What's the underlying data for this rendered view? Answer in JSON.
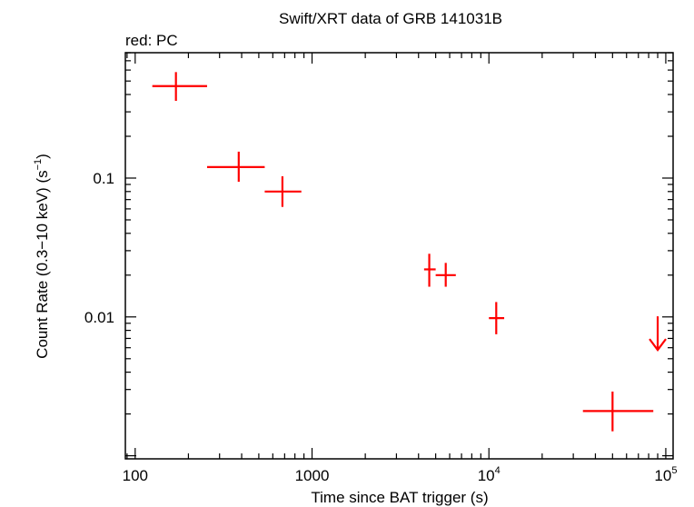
{
  "chart_data": {
    "type": "scatter",
    "title": "Swift/XRT data of GRB 141031B",
    "subtitle": "red: PC",
    "xlabel": "Time since BAT trigger (s)",
    "ylabel_main": "Count Rate (0.3−10 keV) (s",
    "ylabel_sup": "−1",
    "ylabel_close": ")",
    "xscale": "log",
    "yscale": "log",
    "xlim": [
      88,
      110000
    ],
    "ylim": [
      0.00095,
      0.8
    ],
    "x_ticks": [
      {
        "value": 100,
        "label": "100"
      },
      {
        "value": 1000,
        "label": "1000"
      },
      {
        "value": 10000,
        "base": "10",
        "exp": "4"
      },
      {
        "value": 100000,
        "base": "10",
        "exp": "5"
      }
    ],
    "y_ticks": [
      {
        "value": 0.1,
        "label": "0.1"
      },
      {
        "value": 0.01,
        "label": "0.01"
      }
    ],
    "series": [
      {
        "name": "PC",
        "color": "#ff0000",
        "points": [
          {
            "x": 170,
            "xlo": 125,
            "xhi": 255,
            "y": 0.46,
            "ylo": 0.36,
            "yhi": 0.58
          },
          {
            "x": 385,
            "xlo": 255,
            "xhi": 540,
            "y": 0.12,
            "ylo": 0.094,
            "yhi": 0.155
          },
          {
            "x": 680,
            "xlo": 540,
            "xhi": 870,
            "y": 0.08,
            "ylo": 0.062,
            "yhi": 0.103
          },
          {
            "x": 4600,
            "xlo": 4300,
            "xhi": 5000,
            "y": 0.022,
            "ylo": 0.0165,
            "yhi": 0.0285
          },
          {
            "x": 5700,
            "xlo": 5000,
            "xhi": 6500,
            "y": 0.02,
            "ylo": 0.0165,
            "yhi": 0.0245
          },
          {
            "x": 11000,
            "xlo": 10000,
            "xhi": 12200,
            "y": 0.0098,
            "ylo": 0.0075,
            "yhi": 0.0128
          },
          {
            "x": 50000,
            "xlo": 34000,
            "xhi": 85000,
            "y": 0.0021,
            "ylo": 0.0015,
            "yhi": 0.0029
          }
        ],
        "upper_limits": [
          {
            "x": 90000,
            "y": 0.0098
          }
        ]
      }
    ]
  }
}
